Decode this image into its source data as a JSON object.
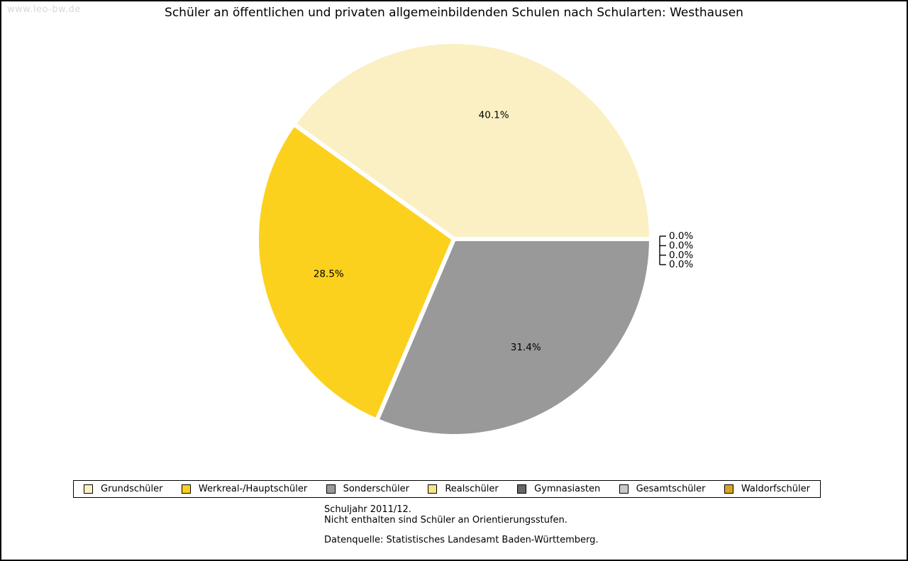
{
  "watermark": "www.leo-bw.de",
  "title": "Schüler an öffentlichen und privaten allgemeinbildenden Schulen nach Schularten: Westhausen",
  "chart_data": {
    "type": "pie",
    "title": "Schüler an öffentlichen und privaten allgemeinbildenden Schulen nach Schularten: Westhausen",
    "unit": "percent",
    "start_angle_deg": 0,
    "direction": "counterclockwise",
    "legend_position": "bottom",
    "slices": [
      {
        "label": "Grundschüler",
        "value": 40.1,
        "display": "40.1%",
        "color": "#faf0c3"
      },
      {
        "label": "Werkreal-/Hauptschüler",
        "value": 28.5,
        "display": "28.5%",
        "color": "#fcd11e"
      },
      {
        "label": "Sonderschüler",
        "value": 31.4,
        "display": "31.4%",
        "color": "#999999"
      },
      {
        "label": "Realschüler",
        "value": 0.0,
        "display": "0.0%",
        "color": "#f7e488"
      },
      {
        "label": "Gymnasiasten",
        "value": 0.0,
        "display": "0.0%",
        "color": "#666666"
      },
      {
        "label": "Gesamtschüler",
        "value": 0.0,
        "display": "0.0%",
        "color": "#c9c9c9"
      },
      {
        "label": "Waldorfschüler",
        "value": 0.0,
        "display": "0.0%",
        "color": "#d9a521"
      }
    ]
  },
  "footer": {
    "line1": "Schuljahr 2011/12.",
    "line2": "Nicht enthalten sind Schüler an Orientierungsstufen.",
    "source": "Datenquelle: Statistisches Landesamt Baden-Württemberg."
  }
}
